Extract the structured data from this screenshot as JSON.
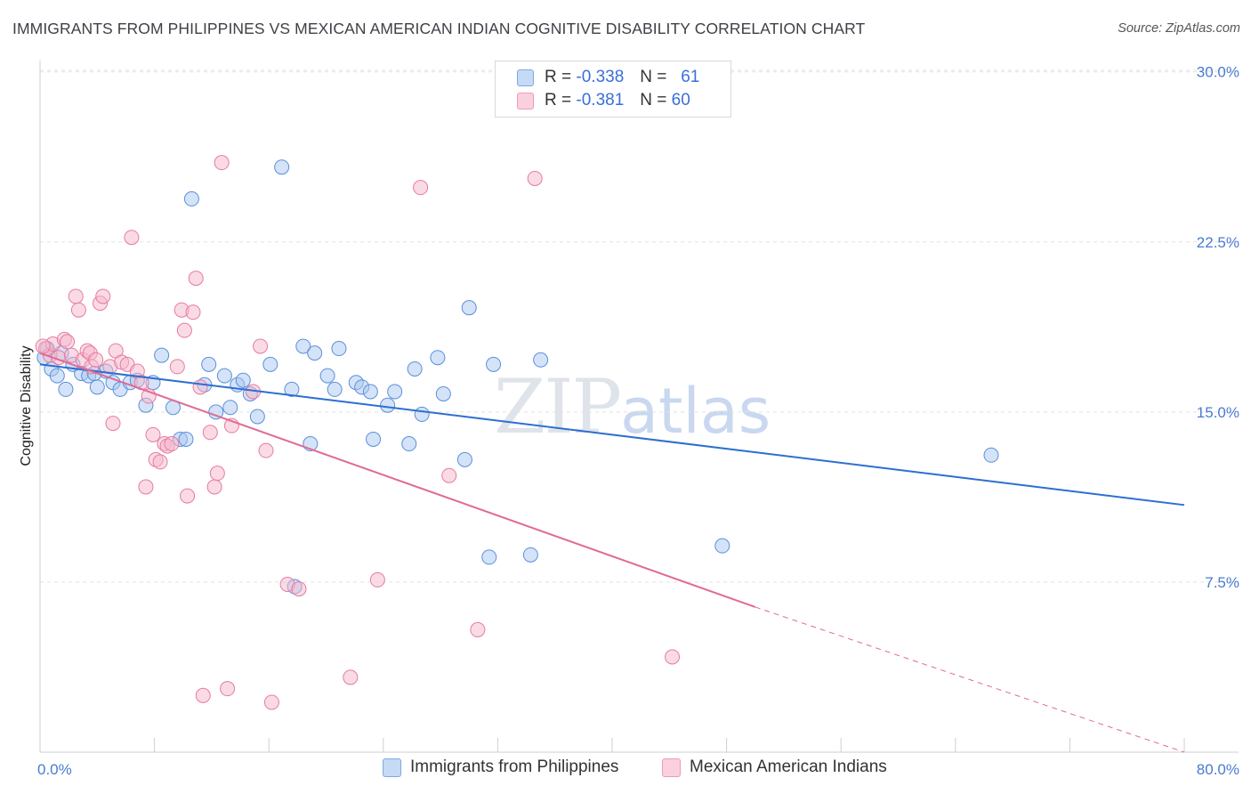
{
  "header": {
    "title": "IMMIGRANTS FROM PHILIPPINES VS MEXICAN AMERICAN INDIAN COGNITIVE DISABILITY CORRELATION CHART",
    "source": "Source: ZipAtlas.com"
  },
  "watermark": {
    "zip": "ZIP",
    "atlas": "atlas"
  },
  "legend": {
    "rows": [
      {
        "r_label": "R =",
        "r_value": "-0.338",
        "n_label": "N =",
        "n_value": "61",
        "color": "#a9c8f0"
      },
      {
        "r_label": "R =",
        "r_value": "-0.381",
        "n_label": "N =",
        "n_value": "60",
        "color": "#f6b8cc"
      }
    ]
  },
  "bottom_legend": {
    "items": [
      {
        "label": "Immigrants from Philippines",
        "color": "#a9c8f0"
      },
      {
        "label": "Mexican American Indians",
        "color": "#f6b8cc"
      }
    ]
  },
  "chart_data": {
    "type": "scatter",
    "title": "IMMIGRANTS FROM PHILIPPINES VS MEXICAN AMERICAN INDIAN COGNITIVE DISABILITY CORRELATION CHART",
    "xlabel": "",
    "ylabel": "Cognitive Disability",
    "xlim": [
      0,
      80
    ],
    "ylim": [
      0,
      30.5
    ],
    "x_tick_labels": [
      "0.0%",
      "80.0%"
    ],
    "y_ticks": [
      7.5,
      15.0,
      22.5,
      30.0
    ],
    "y_tick_labels": [
      "7.5%",
      "15.0%",
      "22.5%",
      "30.0%"
    ],
    "grid": true,
    "series": [
      {
        "name": "Immigrants from Philippines",
        "color": "#5a8fdc",
        "fill": "#a9c8f0",
        "trendline": {
          "x": [
            0,
            80
          ],
          "y": [
            17.1,
            10.9
          ],
          "color": "#2d6fd0"
        },
        "points": [
          [
            0.3,
            17.4
          ],
          [
            0.8,
            16.9
          ],
          [
            1.2,
            16.6
          ],
          [
            1.8,
            16.0
          ],
          [
            2.3,
            17.1
          ],
          [
            2.9,
            16.7
          ],
          [
            3.4,
            16.6
          ],
          [
            4.0,
            16.1
          ],
          [
            4.6,
            16.8
          ],
          [
            5.1,
            16.3
          ],
          [
            5.6,
            16.0
          ],
          [
            6.3,
            16.3
          ],
          [
            7.4,
            15.3
          ],
          [
            7.9,
            16.3
          ],
          [
            8.5,
            17.5
          ],
          [
            9.3,
            15.2
          ],
          [
            9.8,
            13.8
          ],
          [
            10.2,
            13.8
          ],
          [
            10.6,
            24.4
          ],
          [
            11.5,
            16.2
          ],
          [
            11.8,
            17.1
          ],
          [
            12.3,
            15.0
          ],
          [
            12.9,
            16.6
          ],
          [
            13.3,
            15.2
          ],
          [
            13.8,
            16.2
          ],
          [
            14.2,
            16.4
          ],
          [
            14.7,
            15.8
          ],
          [
            15.2,
            14.8
          ],
          [
            16.1,
            17.1
          ],
          [
            16.9,
            25.8
          ],
          [
            17.6,
            16.0
          ],
          [
            17.8,
            7.3
          ],
          [
            18.4,
            17.9
          ],
          [
            18.9,
            13.6
          ],
          [
            19.2,
            17.6
          ],
          [
            20.1,
            16.6
          ],
          [
            20.6,
            16.0
          ],
          [
            20.9,
            17.8
          ],
          [
            22.1,
            16.3
          ],
          [
            22.5,
            16.1
          ],
          [
            23.1,
            15.9
          ],
          [
            23.3,
            13.8
          ],
          [
            24.3,
            15.3
          ],
          [
            24.8,
            15.9
          ],
          [
            25.8,
            13.6
          ],
          [
            26.2,
            16.9
          ],
          [
            26.7,
            14.9
          ],
          [
            27.8,
            17.4
          ],
          [
            28.2,
            15.8
          ],
          [
            29.7,
            12.9
          ],
          [
            30.0,
            19.6
          ],
          [
            31.4,
            8.6
          ],
          [
            31.7,
            17.1
          ],
          [
            34.3,
            8.7
          ],
          [
            35.0,
            17.3
          ],
          [
            47.7,
            9.1
          ],
          [
            66.5,
            13.1
          ],
          [
            0.5,
            17.8
          ],
          [
            1.5,
            17.6
          ],
          [
            6.8,
            16.4
          ],
          [
            3.8,
            16.7
          ]
        ]
      },
      {
        "name": "Mexican American Indians",
        "color": "#e67ba0",
        "fill": "#f6b8cc",
        "trendline": {
          "x": [
            0,
            50
          ],
          "y": [
            17.6,
            6.4
          ],
          "dashed_to": [
            80,
            0
          ],
          "color": "#e06a95"
        },
        "points": [
          [
            0.4,
            17.8
          ],
          [
            0.7,
            17.5
          ],
          [
            0.9,
            18.0
          ],
          [
            1.3,
            17.4
          ],
          [
            1.7,
            18.2
          ],
          [
            1.9,
            18.1
          ],
          [
            2.2,
            17.5
          ],
          [
            2.5,
            20.1
          ],
          [
            2.7,
            19.5
          ],
          [
            3.0,
            17.3
          ],
          [
            3.3,
            17.7
          ],
          [
            3.5,
            17.6
          ],
          [
            3.6,
            17.0
          ],
          [
            3.9,
            17.3
          ],
          [
            4.2,
            19.8
          ],
          [
            4.4,
            20.1
          ],
          [
            4.9,
            17.0
          ],
          [
            5.1,
            14.5
          ],
          [
            5.3,
            17.7
          ],
          [
            5.7,
            17.2
          ],
          [
            6.1,
            17.1
          ],
          [
            6.4,
            22.7
          ],
          [
            6.8,
            16.8
          ],
          [
            7.1,
            16.3
          ],
          [
            7.4,
            11.7
          ],
          [
            7.6,
            15.7
          ],
          [
            7.9,
            14.0
          ],
          [
            8.1,
            12.9
          ],
          [
            8.4,
            12.8
          ],
          [
            8.7,
            13.6
          ],
          [
            8.9,
            13.5
          ],
          [
            9.2,
            13.6
          ],
          [
            9.6,
            17.0
          ],
          [
            9.9,
            19.5
          ],
          [
            10.1,
            18.6
          ],
          [
            10.3,
            11.3
          ],
          [
            10.7,
            19.4
          ],
          [
            10.9,
            20.9
          ],
          [
            11.2,
            16.1
          ],
          [
            11.4,
            2.5
          ],
          [
            11.9,
            14.1
          ],
          [
            12.2,
            11.7
          ],
          [
            12.4,
            12.3
          ],
          [
            12.7,
            26.0
          ],
          [
            13.1,
            2.8
          ],
          [
            13.4,
            14.4
          ],
          [
            14.9,
            15.9
          ],
          [
            15.4,
            17.9
          ],
          [
            15.8,
            13.3
          ],
          [
            16.2,
            2.2
          ],
          [
            17.3,
            7.4
          ],
          [
            18.1,
            7.2
          ],
          [
            21.7,
            3.3
          ],
          [
            23.6,
            7.6
          ],
          [
            26.6,
            24.9
          ],
          [
            28.6,
            12.2
          ],
          [
            30.6,
            5.4
          ],
          [
            34.6,
            25.3
          ],
          [
            44.2,
            4.2
          ],
          [
            0.2,
            17.9
          ]
        ]
      }
    ]
  }
}
